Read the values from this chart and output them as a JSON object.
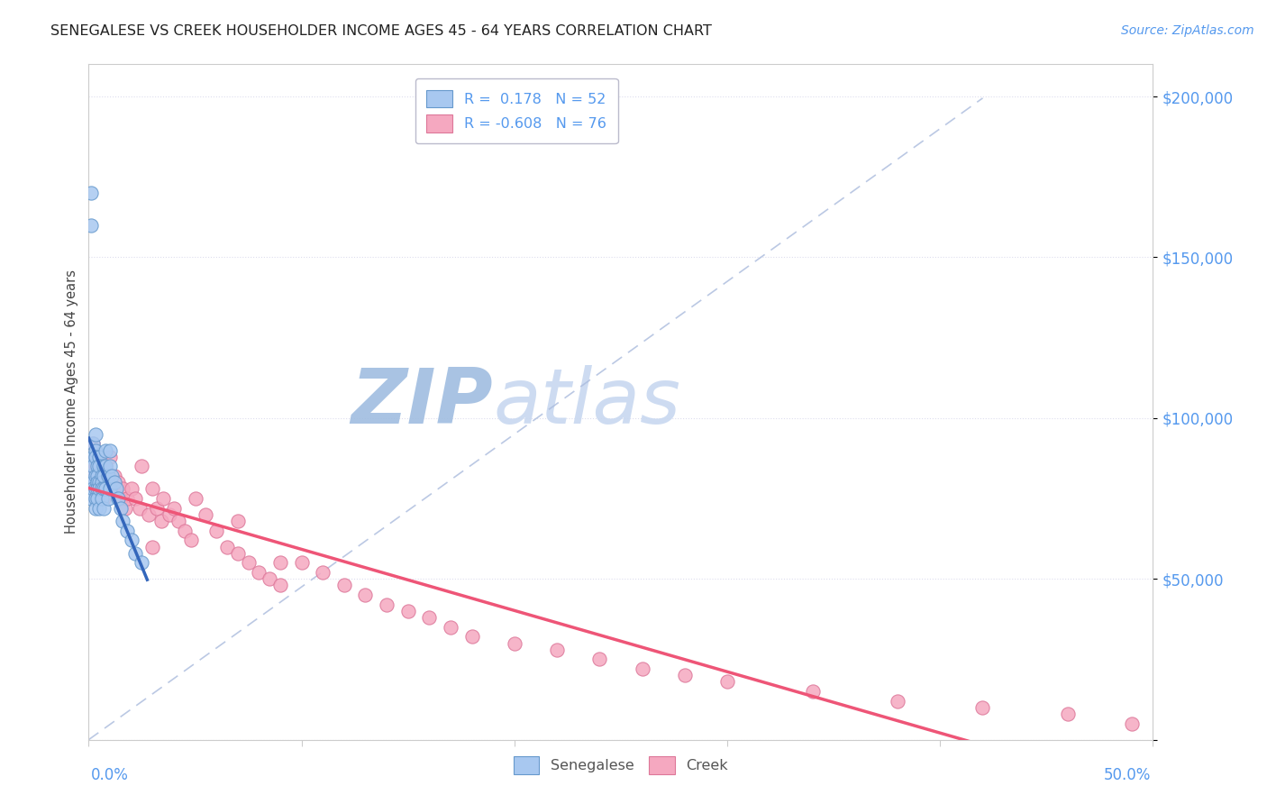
{
  "title": "SENEGALESE VS CREEK HOUSEHOLDER INCOME AGES 45 - 64 YEARS CORRELATION CHART",
  "source": "Source: ZipAtlas.com",
  "ylabel": "Householder Income Ages 45 - 64 years",
  "xmin": 0.0,
  "xmax": 0.5,
  "ymin": 0,
  "ymax": 210000,
  "legend_r1": "R =  0.178",
  "legend_n1": "N = 52",
  "legend_r2": "R = -0.608",
  "legend_n2": "N = 76",
  "senegalese_color": "#a8c8f0",
  "creek_color": "#f5a8c0",
  "senegalese_edge": "#6699cc",
  "creek_edge": "#dd7799",
  "trend_senegalese_color": "#3366bb",
  "trend_creek_color": "#ee5577",
  "diag_color": "#aabbdd",
  "watermark_zip_color": "#a0bde0",
  "watermark_atlas_color": "#c8d8f0",
  "background_color": "#ffffff",
  "title_color": "#222222",
  "source_color": "#5599ee",
  "ytick_color": "#5599ee",
  "xtick_color": "#5599ee",
  "grid_color": "#ddddee",
  "spine_color": "#cccccc",
  "senegalese_x": [
    0.001,
    0.001,
    0.001,
    0.002,
    0.002,
    0.002,
    0.002,
    0.002,
    0.003,
    0.003,
    0.003,
    0.003,
    0.003,
    0.003,
    0.003,
    0.004,
    0.004,
    0.004,
    0.004,
    0.004,
    0.005,
    0.005,
    0.005,
    0.005,
    0.005,
    0.006,
    0.006,
    0.006,
    0.006,
    0.007,
    0.007,
    0.007,
    0.007,
    0.008,
    0.008,
    0.008,
    0.009,
    0.009,
    0.01,
    0.01,
    0.01,
    0.011,
    0.012,
    0.013,
    0.014,
    0.015,
    0.016,
    0.018,
    0.02,
    0.022,
    0.025,
    0.001
  ],
  "senegalese_y": [
    170000,
    82000,
    75000,
    92000,
    88000,
    80000,
    78000,
    85000,
    95000,
    90000,
    88000,
    82000,
    78000,
    75000,
    72000,
    85000,
    82000,
    80000,
    78000,
    75000,
    88000,
    85000,
    80000,
    78000,
    72000,
    82000,
    80000,
    78000,
    75000,
    85000,
    82000,
    78000,
    72000,
    90000,
    85000,
    78000,
    82000,
    75000,
    90000,
    85000,
    78000,
    82000,
    80000,
    78000,
    75000,
    72000,
    68000,
    65000,
    62000,
    58000,
    55000,
    160000
  ],
  "creek_x": [
    0.001,
    0.002,
    0.002,
    0.003,
    0.003,
    0.003,
    0.004,
    0.004,
    0.005,
    0.005,
    0.005,
    0.006,
    0.006,
    0.006,
    0.007,
    0.007,
    0.008,
    0.008,
    0.009,
    0.009,
    0.01,
    0.01,
    0.011,
    0.012,
    0.013,
    0.014,
    0.015,
    0.016,
    0.017,
    0.018,
    0.02,
    0.022,
    0.024,
    0.025,
    0.028,
    0.03,
    0.032,
    0.034,
    0.035,
    0.038,
    0.04,
    0.042,
    0.045,
    0.048,
    0.05,
    0.055,
    0.06,
    0.065,
    0.07,
    0.075,
    0.08,
    0.085,
    0.09,
    0.1,
    0.11,
    0.12,
    0.13,
    0.14,
    0.15,
    0.16,
    0.17,
    0.18,
    0.2,
    0.22,
    0.24,
    0.26,
    0.28,
    0.3,
    0.34,
    0.38,
    0.42,
    0.46,
    0.49,
    0.03,
    0.07,
    0.09
  ],
  "creek_y": [
    82000,
    92000,
    80000,
    88000,
    78000,
    85000,
    82000,
    78000,
    88000,
    85000,
    80000,
    82000,
    78000,
    85000,
    80000,
    75000,
    85000,
    78000,
    82000,
    78000,
    88000,
    80000,
    78000,
    82000,
    78000,
    80000,
    75000,
    78000,
    72000,
    75000,
    78000,
    75000,
    72000,
    85000,
    70000,
    78000,
    72000,
    68000,
    75000,
    70000,
    72000,
    68000,
    65000,
    62000,
    75000,
    70000,
    65000,
    60000,
    58000,
    55000,
    52000,
    50000,
    48000,
    55000,
    52000,
    48000,
    45000,
    42000,
    40000,
    38000,
    35000,
    32000,
    30000,
    28000,
    25000,
    22000,
    20000,
    18000,
    15000,
    12000,
    10000,
    8000,
    5000,
    60000,
    68000,
    55000
  ]
}
